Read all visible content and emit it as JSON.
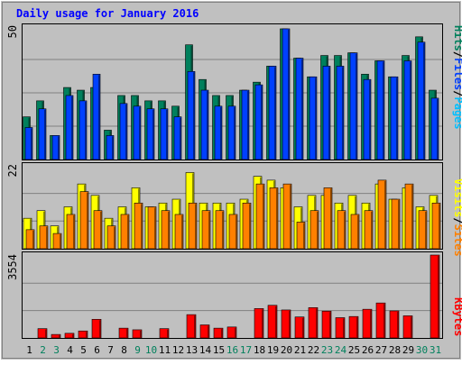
{
  "chart_data": {
    "type": "bar",
    "title": "Daily usage for January 2016",
    "categories": [
      "1",
      "2",
      "3",
      "4",
      "5",
      "6",
      "7",
      "8",
      "9",
      "10",
      "11",
      "12",
      "13",
      "14",
      "15",
      "16",
      "17",
      "18",
      "19",
      "20",
      "21",
      "22",
      "23",
      "24",
      "25",
      "26",
      "27",
      "28",
      "29",
      "30",
      "31"
    ],
    "weekend_days": [
      2,
      3,
      9,
      10,
      16,
      17,
      23,
      24,
      30,
      31
    ],
    "ymax": {
      "pages_files_hits": 50,
      "visits_sites": 22,
      "kbytes": 3554
    },
    "series": [
      {
        "name": "Hits",
        "panel": "top",
        "color": "#00805c",
        "values": [
          16,
          22,
          9,
          27,
          26,
          27,
          11,
          24,
          24,
          22,
          22,
          20,
          43,
          30,
          24,
          24,
          26,
          29,
          35,
          49,
          38,
          31,
          39,
          39,
          40,
          32,
          37,
          31,
          39,
          46,
          26
        ]
      },
      {
        "name": "Files",
        "panel": "top",
        "color": "#0040ff",
        "values": [
          12,
          19,
          9,
          24,
          22,
          32,
          9,
          21,
          20,
          19,
          19,
          16,
          33,
          26,
          20,
          20,
          26,
          28,
          35,
          49,
          38,
          31,
          35,
          35,
          40,
          30,
          37,
          31,
          37,
          44,
          23
        ]
      },
      {
        "name": "Pages",
        "panel": "top",
        "color": "#00bfff",
        "values": [
          0,
          0,
          0,
          0,
          0,
          0,
          0,
          0,
          0,
          0,
          0,
          0,
          0,
          0,
          0,
          0,
          0,
          0,
          0,
          0,
          0,
          0,
          0,
          0,
          0,
          0,
          0,
          0,
          0,
          0,
          0
        ]
      },
      {
        "name": "Visits",
        "panel": "middle",
        "color": "#ffff00",
        "values": [
          8,
          10,
          6,
          11,
          17,
          14,
          8,
          11,
          16,
          11,
          12,
          13,
          20,
          12,
          12,
          12,
          13,
          19,
          18,
          16,
          11,
          14,
          14,
          12,
          14,
          12,
          17,
          13,
          16,
          11,
          14
        ]
      },
      {
        "name": "Sites",
        "panel": "middle",
        "color": "#ff8000",
        "values": [
          5,
          6,
          4,
          9,
          15,
          10,
          6,
          9,
          12,
          11,
          10,
          9,
          12,
          10,
          10,
          9,
          12,
          17,
          16,
          17,
          7,
          10,
          16,
          10,
          9,
          10,
          18,
          13,
          17,
          10,
          12
        ]
      },
      {
        "name": "KBytes",
        "panel": "bottom",
        "color": "#ff0000",
        "values": [
          0,
          400,
          150,
          200,
          300,
          800,
          0,
          420,
          350,
          0,
          400,
          0,
          1000,
          560,
          420,
          470,
          0,
          1260,
          1400,
          1200,
          900,
          1300,
          1150,
          870,
          920,
          1230,
          1500,
          1160,
          950,
          0,
          3554
        ]
      }
    ],
    "legend_top": {
      "pages": "Pages",
      "sep1": "/",
      "files": "Files",
      "sep2": "/",
      "hits": "Hits"
    },
    "legend_middle": {
      "sites": "Sites",
      "sep": "/",
      "visits": "Visits"
    },
    "legend_bottom": {
      "kbytes": "KBytes"
    },
    "colors": {
      "background": "#c0c0c0",
      "title": "#0000ff",
      "weekday_label": "#000000",
      "weekend_label": "#00805c"
    }
  }
}
